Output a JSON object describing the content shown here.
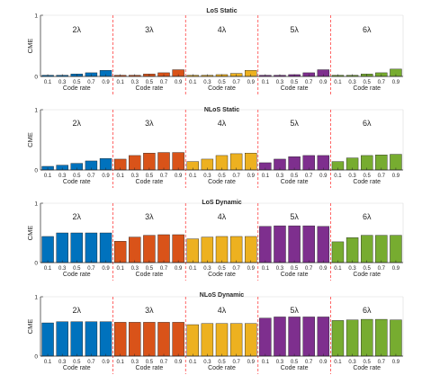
{
  "chart_data": [
    {
      "type": "bar",
      "title": "LoS Static",
      "xlabel": "Code rate",
      "ylabel": "CME",
      "ylim": [
        0,
        1
      ],
      "yticks": [
        0,
        1
      ],
      "grid": false,
      "groups": [
        "2λ",
        "3λ",
        "4λ",
        "5λ",
        "6λ"
      ],
      "categories": [
        "0.1",
        "0.3",
        "0.5",
        "0.7",
        "0.9"
      ],
      "colors": [
        "#0072BD",
        "#D95319",
        "#EDB120",
        "#7E2F8E",
        "#77AC30"
      ],
      "separator_color": "#ff0000",
      "values": [
        [
          0.02,
          0.02,
          0.04,
          0.06,
          0.1
        ],
        [
          0.02,
          0.02,
          0.04,
          0.06,
          0.11
        ],
        [
          0.02,
          0.02,
          0.03,
          0.05,
          0.1
        ],
        [
          0.02,
          0.02,
          0.03,
          0.06,
          0.11
        ],
        [
          0.02,
          0.02,
          0.04,
          0.06,
          0.12
        ]
      ]
    },
    {
      "type": "bar",
      "title": "NLoS Static",
      "xlabel": "Code rate",
      "ylabel": "CME",
      "ylim": [
        0,
        1
      ],
      "yticks": [
        0,
        1
      ],
      "grid": false,
      "groups": [
        "2λ",
        "3λ",
        "4λ",
        "5λ",
        "6λ"
      ],
      "categories": [
        "0.1",
        "0.3",
        "0.5",
        "0.7",
        "0.9"
      ],
      "colors": [
        "#0072BD",
        "#D95319",
        "#EDB120",
        "#7E2F8E",
        "#77AC30"
      ],
      "separator_color": "#ff0000",
      "values": [
        [
          0.06,
          0.08,
          0.11,
          0.15,
          0.19
        ],
        [
          0.18,
          0.24,
          0.28,
          0.29,
          0.29
        ],
        [
          0.14,
          0.18,
          0.24,
          0.27,
          0.28
        ],
        [
          0.12,
          0.18,
          0.22,
          0.24,
          0.24
        ],
        [
          0.14,
          0.2,
          0.24,
          0.25,
          0.26
        ]
      ]
    },
    {
      "type": "bar",
      "title": "LoS Dynamic",
      "xlabel": "Code rate",
      "ylabel": "CME",
      "ylim": [
        0,
        1
      ],
      "yticks": [
        0,
        1
      ],
      "grid": false,
      "groups": [
        "2λ",
        "3λ",
        "4λ",
        "5λ",
        "6λ"
      ],
      "categories": [
        "0.1",
        "0.3",
        "0.5",
        "0.7",
        "0.9"
      ],
      "colors": [
        "#0072BD",
        "#D95319",
        "#EDB120",
        "#7E2F8E",
        "#77AC30"
      ],
      "separator_color": "#ff0000",
      "values": [
        [
          0.44,
          0.5,
          0.5,
          0.5,
          0.5
        ],
        [
          0.36,
          0.43,
          0.46,
          0.47,
          0.47
        ],
        [
          0.4,
          0.43,
          0.44,
          0.44,
          0.44
        ],
        [
          0.61,
          0.62,
          0.62,
          0.62,
          0.61
        ],
        [
          0.35,
          0.42,
          0.46,
          0.46,
          0.46
        ]
      ]
    },
    {
      "type": "bar",
      "title": "NLoS Dynamic",
      "xlabel": "Code rate",
      "ylabel": "CME",
      "ylim": [
        0,
        1
      ],
      "yticks": [
        0,
        1
      ],
      "grid": false,
      "groups": [
        "2λ",
        "3λ",
        "4λ",
        "5λ",
        "6λ"
      ],
      "categories": [
        "0.1",
        "0.3",
        "0.5",
        "0.7",
        "0.9"
      ],
      "colors": [
        "#0072BD",
        "#D95319",
        "#EDB120",
        "#7E2F8E",
        "#77AC30"
      ],
      "separator_color": "#ff0000",
      "values": [
        [
          0.56,
          0.58,
          0.58,
          0.58,
          0.58
        ],
        [
          0.57,
          0.57,
          0.57,
          0.57,
          0.57
        ],
        [
          0.53,
          0.55,
          0.55,
          0.55,
          0.55
        ],
        [
          0.64,
          0.66,
          0.66,
          0.66,
          0.66
        ],
        [
          0.6,
          0.61,
          0.62,
          0.62,
          0.61
        ]
      ]
    }
  ]
}
